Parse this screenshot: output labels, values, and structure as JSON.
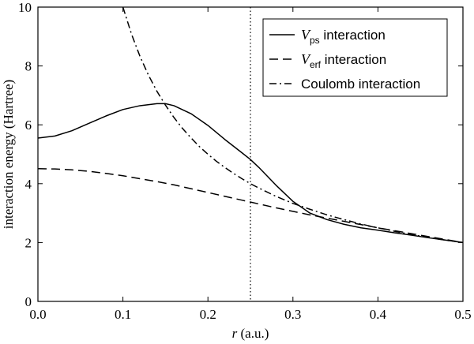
{
  "chart_data": {
    "type": "line",
    "xlabel_italic": "r",
    "xlabel_rest": " (a.u.)",
    "ylabel": "interaction energy (Hartree)",
    "xlim": [
      0.0,
      0.5
    ],
    "ylim": [
      0,
      10
    ],
    "xticks": [
      "0.0",
      "0.1",
      "0.2",
      "0.3",
      "0.4",
      "0.5"
    ],
    "yticks": [
      "0",
      "2",
      "4",
      "6",
      "8",
      "10"
    ],
    "vline_x": 0.25,
    "legend_position": "top-right",
    "series": [
      {
        "name": "V_ps interaction",
        "legend_main": "V",
        "legend_sub": "ps",
        "legend_tail": " interaction",
        "style": "solid",
        "color": "#000000",
        "x": [
          0.0,
          0.02,
          0.04,
          0.06,
          0.08,
          0.1,
          0.12,
          0.14,
          0.15,
          0.16,
          0.18,
          0.2,
          0.22,
          0.24,
          0.25,
          0.26,
          0.28,
          0.3,
          0.32,
          0.34,
          0.36,
          0.38,
          0.4,
          0.42,
          0.44,
          0.46,
          0.48,
          0.5
        ],
        "y": [
          5.55,
          5.62,
          5.8,
          6.05,
          6.3,
          6.52,
          6.65,
          6.72,
          6.72,
          6.65,
          6.38,
          5.98,
          5.5,
          5.05,
          4.82,
          4.55,
          3.95,
          3.4,
          3.0,
          2.78,
          2.62,
          2.5,
          2.42,
          2.33,
          2.25,
          2.16,
          2.08,
          2.0
        ]
      },
      {
        "name": "V_erf interaction",
        "legend_main": "V",
        "legend_sub": "erf",
        "legend_tail": " interaction",
        "style": "dashed",
        "color": "#000000",
        "x": [
          0.0,
          0.02,
          0.04,
          0.06,
          0.08,
          0.1,
          0.12,
          0.14,
          0.16,
          0.18,
          0.2,
          0.22,
          0.24,
          0.26,
          0.28,
          0.3,
          0.32,
          0.34,
          0.36,
          0.38,
          0.4,
          0.42,
          0.44,
          0.46,
          0.48,
          0.5
        ],
        "y": [
          4.51,
          4.5,
          4.47,
          4.42,
          4.35,
          4.27,
          4.17,
          4.07,
          3.96,
          3.83,
          3.7,
          3.57,
          3.44,
          3.31,
          3.18,
          3.06,
          2.94,
          2.83,
          2.72,
          2.61,
          2.5,
          2.4,
          2.3,
          2.2,
          2.1,
          2.0
        ]
      },
      {
        "name": "Coulomb interaction",
        "legend_main": "Coulomb interaction",
        "legend_sub": "",
        "legend_tail": "",
        "style": "dashdot",
        "color": "#000000",
        "x": [
          0.1,
          0.11,
          0.12,
          0.13,
          0.14,
          0.15,
          0.16,
          0.17,
          0.18,
          0.19,
          0.2,
          0.21,
          0.22,
          0.23,
          0.24,
          0.25,
          0.26,
          0.28,
          0.3,
          0.32,
          0.34,
          0.36,
          0.38,
          0.4,
          0.42,
          0.44,
          0.46,
          0.48,
          0.5
        ],
        "y": [
          10.0,
          9.09,
          8.33,
          7.69,
          7.14,
          6.67,
          6.25,
          5.88,
          5.56,
          5.26,
          5.0,
          4.76,
          4.55,
          4.35,
          4.17,
          4.0,
          3.85,
          3.57,
          3.33,
          3.13,
          2.94,
          2.78,
          2.63,
          2.5,
          2.38,
          2.27,
          2.17,
          2.08,
          2.0
        ]
      }
    ]
  }
}
